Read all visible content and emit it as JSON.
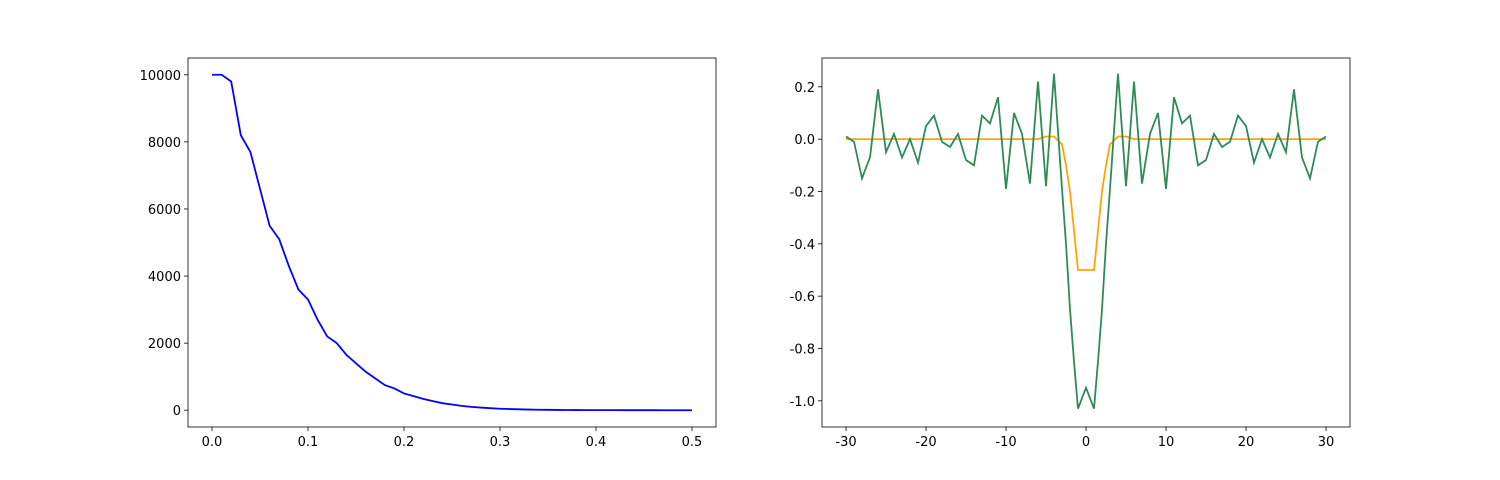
{
  "chart_data": [
    {
      "type": "line",
      "x": [
        0,
        0.01,
        0.02,
        0.03,
        0.04,
        0.05,
        0.06,
        0.07,
        0.08,
        0.09,
        0.1,
        0.11,
        0.12,
        0.13,
        0.14,
        0.15,
        0.16,
        0.17,
        0.18,
        0.19,
        0.2,
        0.21,
        0.22,
        0.23,
        0.24,
        0.25,
        0.26,
        0.27,
        0.28,
        0.29,
        0.3,
        0.31,
        0.32,
        0.33,
        0.34,
        0.35,
        0.36,
        0.37,
        0.38,
        0.39,
        0.4,
        0.41,
        0.42,
        0.43,
        0.44,
        0.45,
        0.46,
        0.47,
        0.48,
        0.49,
        0.5
      ],
      "series": [
        {
          "color": "#0000ff",
          "values": [
            10000,
            10000,
            9800,
            8200,
            7700,
            6600,
            5500,
            5100,
            4300,
            3600,
            3300,
            2700,
            2200,
            2000,
            1650,
            1400,
            1150,
            950,
            750,
            650,
            500,
            420,
            340,
            270,
            210,
            170,
            130,
            100,
            80,
            60,
            45,
            35,
            27,
            20,
            15,
            12,
            9,
            7,
            5,
            4,
            3,
            2,
            2,
            1,
            1,
            1,
            1,
            0,
            0,
            0,
            0
          ]
        }
      ],
      "xlim": [
        -0.025,
        0.525
      ],
      "ylim": [
        -500,
        10500
      ],
      "xticks": [
        {
          "value": 0,
          "label": "0.0"
        },
        0.1,
        0.2,
        0.3,
        0.4,
        0.5
      ],
      "yticks": [
        0,
        2000,
        4000,
        6000,
        8000,
        10000
      ]
    },
    {
      "type": "line",
      "x": [
        -30,
        -29,
        -28,
        -27,
        -26,
        -25,
        -24,
        -23,
        -22,
        -21,
        -20,
        -19,
        -18,
        -17,
        -16,
        -15,
        -14,
        -13,
        -12,
        -11,
        -10,
        -9,
        -8,
        -7,
        -6,
        -5,
        -4,
        -3,
        -2.5,
        -2,
        -1.5,
        -1,
        0,
        1,
        1.5,
        2,
        2.5,
        3,
        4,
        5,
        6,
        7,
        8,
        9,
        10,
        11,
        12,
        13,
        14,
        15,
        16,
        17,
        18,
        19,
        20,
        21,
        22,
        23,
        24,
        25,
        26,
        27,
        28,
        29,
        30
      ],
      "series": [
        {
          "color": "#ffa500",
          "values": [
            0,
            0,
            0,
            0,
            0,
            0,
            0,
            0,
            0,
            0,
            0,
            0,
            0,
            0,
            0,
            0,
            0,
            0,
            0,
            0,
            0,
            0,
            0,
            0,
            0,
            0.01,
            0.01,
            -0.02,
            -0.1,
            -0.2,
            -0.35,
            -0.5,
            -0.5,
            -0.5,
            -0.35,
            -0.2,
            -0.1,
            -0.02,
            0.01,
            0.01,
            0,
            0,
            0,
            0,
            0,
            0,
            0,
            0,
            0,
            0,
            0,
            0,
            0,
            0,
            0,
            0,
            0,
            0,
            0,
            0,
            0,
            0,
            0,
            0,
            0
          ]
        },
        {
          "color": "#2e8b57",
          "values": [
            0.01,
            -0.01,
            -0.15,
            -0.07,
            0.19,
            -0.05,
            0.02,
            -0.07,
            0,
            -0.09,
            0.05,
            0.09,
            -0.01,
            -0.03,
            0.02,
            -0.08,
            -0.1,
            0.09,
            0.06,
            0.16,
            -0.19,
            0.1,
            0.02,
            -0.17,
            0.22,
            -0.18,
            0.25,
            -0.19,
            -0.4,
            -0.65,
            -0.85,
            -1.03,
            -0.95,
            -1.03,
            -0.85,
            -0.65,
            -0.4,
            -0.19,
            0.25,
            -0.18,
            0.22,
            -0.17,
            0.02,
            0.1,
            -0.19,
            0.16,
            0.06,
            0.09,
            -0.1,
            -0.08,
            0.02,
            -0.03,
            -0.01,
            0.09,
            0.05,
            -0.09,
            0,
            -0.07,
            0.02,
            -0.05,
            0.19,
            -0.07,
            -0.15,
            -0.01,
            0.01
          ]
        }
      ],
      "xlim": [
        -33,
        33
      ],
      "ylim": [
        -1.1,
        0.31
      ],
      "xticks": [
        -30,
        -20,
        -10,
        0,
        10,
        20,
        30
      ],
      "yticks": [
        {
          "value": -1,
          "label": "-1.0"
        },
        -0.8,
        -0.6,
        -0.4,
        -0.2,
        {
          "value": 0,
          "label": "0.0"
        },
        0.2
      ]
    }
  ]
}
